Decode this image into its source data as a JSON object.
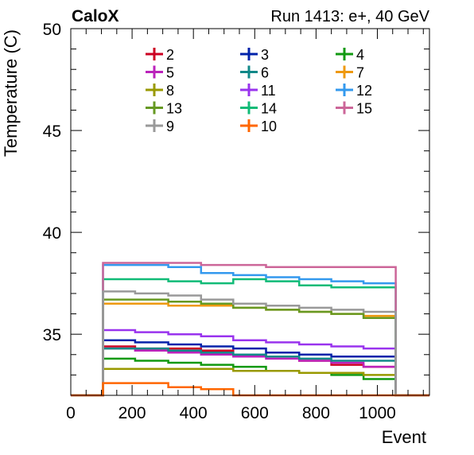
{
  "header": {
    "left_label": "CaloX",
    "right_label": "Run 1413: e+, 40 GeV"
  },
  "chart_data": {
    "type": "line",
    "step": true,
    "title": "",
    "xlabel": "Event",
    "ylabel": "Temperature (C)",
    "xlim": [
      0,
      1170
    ],
    "ylim": [
      32,
      50
    ],
    "x_ticks": [
      "0",
      "200",
      "400",
      "600",
      "800",
      "1000"
    ],
    "x_tick_values": [
      0,
      200,
      400,
      600,
      800,
      1000
    ],
    "y_ticks": [
      "35",
      "40",
      "45",
      "50"
    ],
    "y_tick_values": [
      35,
      40,
      45,
      50
    ],
    "bin_edges": [
      105,
      210,
      318,
      425,
      530,
      637,
      745,
      850,
      955,
      1060
    ],
    "legend_position": "top",
    "series": [
      {
        "name": "2",
        "color": "#cc0022",
        "values": [
          34.4,
          34.3,
          34.3,
          34.2,
          34.0,
          33.9,
          33.7,
          33.5,
          33.4
        ]
      },
      {
        "name": "3",
        "color": "#0022aa",
        "values": [
          34.7,
          34.6,
          34.5,
          34.4,
          34.3,
          34.1,
          34.0,
          33.9,
          33.9
        ]
      },
      {
        "name": "4",
        "color": "#119911",
        "values": [
          33.8,
          33.7,
          33.6,
          33.5,
          33.4,
          33.2,
          33.1,
          33.0,
          32.8
        ]
      },
      {
        "name": "5",
        "color": "#bb22bb",
        "values": [
          34.3,
          34.2,
          34.1,
          34.0,
          33.9,
          33.8,
          33.7,
          33.6,
          33.4
        ]
      },
      {
        "name": "6",
        "color": "#118888",
        "values": [
          34.3,
          34.3,
          34.2,
          34.1,
          34.0,
          33.9,
          33.8,
          33.7,
          33.7
        ]
      },
      {
        "name": "7",
        "color": "#ee9911",
        "values": [
          36.5,
          36.5,
          36.4,
          36.4,
          36.3,
          36.2,
          36.1,
          36.0,
          35.9
        ]
      },
      {
        "name": "8",
        "color": "#999900",
        "values": [
          33.3,
          33.3,
          33.3,
          33.3,
          33.2,
          33.2,
          33.1,
          33.1,
          33.0
        ]
      },
      {
        "name": "11",
        "color": "#9933ee",
        "values": [
          35.2,
          35.1,
          35.0,
          34.9,
          34.7,
          34.6,
          34.5,
          34.4,
          34.3
        ]
      },
      {
        "name": "12",
        "color": "#3399ee",
        "values": [
          38.4,
          38.4,
          38.3,
          38.0,
          37.9,
          37.8,
          37.7,
          37.6,
          37.5
        ]
      },
      {
        "name": "13",
        "color": "#669922",
        "values": [
          36.7,
          36.7,
          36.6,
          36.5,
          36.3,
          36.2,
          36.1,
          36.0,
          35.8
        ]
      },
      {
        "name": "14",
        "color": "#11bb77",
        "values": [
          37.7,
          37.7,
          37.6,
          37.5,
          37.7,
          37.6,
          37.4,
          37.3,
          37.3
        ]
      },
      {
        "name": "15",
        "color": "#cc6699",
        "values": [
          38.5,
          38.5,
          38.5,
          38.4,
          38.4,
          38.3,
          38.3,
          38.3,
          38.3
        ]
      },
      {
        "name": "9",
        "color": "#999999",
        "values": [
          37.1,
          37.0,
          36.9,
          36.7,
          36.5,
          36.4,
          36.3,
          36.2,
          36.1
        ]
      },
      {
        "name": "10",
        "color": "#ff6600",
        "values": [
          32.6,
          32.6,
          32.4,
          32.3,
          32.0,
          32.0,
          32.0,
          32.0,
          32.0
        ]
      }
    ]
  }
}
